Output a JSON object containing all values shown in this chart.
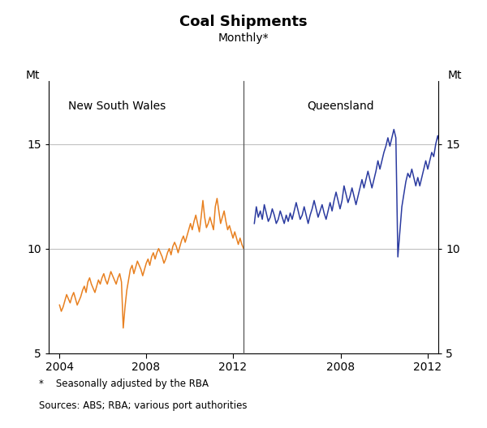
{
  "title": "Coal Shipments",
  "subtitle": "Monthly*",
  "ylabel_left": "Mt",
  "ylabel_right": "Mt",
  "ylim": [
    5,
    18
  ],
  "yticks": [
    5,
    10,
    15
  ],
  "ytick_labels": [
    "5",
    "10",
    "15"
  ],
  "footnote1": "*    Seasonally adjusted by the RBA",
  "footnote2": "Sources: ABS; RBA; various port authorities",
  "nsw_label": "New South Wales",
  "qld_label": "Queensland",
  "nsw_color": "#E88020",
  "qld_color": "#2B3BA0",
  "line_width": 1.1,
  "xticks_nsw": [
    2004,
    2008,
    2012
  ],
  "xticks_qld": [
    2008,
    2012
  ],
  "xlim_nsw": [
    2003.5,
    2012.5
  ],
  "xlim_qld": [
    2003.5,
    2012.5
  ],
  "nsw_data": [
    7.3,
    7.0,
    7.2,
    7.5,
    7.8,
    7.6,
    7.4,
    7.7,
    7.9,
    7.6,
    7.3,
    7.5,
    7.7,
    8.0,
    8.2,
    7.9,
    8.4,
    8.6,
    8.3,
    8.1,
    7.9,
    8.2,
    8.5,
    8.3,
    8.6,
    8.8,
    8.5,
    8.3,
    8.6,
    8.9,
    8.7,
    8.5,
    8.3,
    8.6,
    8.8,
    8.4,
    6.2,
    7.2,
    8.0,
    8.5,
    9.0,
    9.2,
    8.8,
    9.1,
    9.4,
    9.2,
    9.0,
    8.7,
    9.0,
    9.3,
    9.5,
    9.2,
    9.6,
    9.8,
    9.5,
    9.8,
    10.0,
    9.8,
    9.6,
    9.3,
    9.5,
    9.8,
    10.0,
    9.7,
    10.1,
    10.3,
    10.1,
    9.8,
    10.1,
    10.4,
    10.6,
    10.3,
    10.6,
    10.9,
    11.2,
    10.9,
    11.3,
    11.6,
    11.2,
    10.8,
    11.5,
    12.3,
    11.5,
    11.0,
    11.2,
    11.5,
    11.2,
    10.9,
    12.0,
    12.4,
    11.8,
    11.2,
    11.5,
    11.8,
    11.3,
    10.9,
    11.1,
    10.8,
    10.5,
    10.8,
    10.5,
    10.2,
    10.5,
    10.2,
    10.0,
    10.3,
    10.0,
    9.8
  ],
  "qld_data": [
    11.2,
    12.0,
    11.5,
    11.8,
    11.4,
    12.1,
    11.7,
    11.3,
    11.5,
    11.9,
    11.6,
    11.2,
    11.4,
    11.8,
    11.5,
    11.2,
    11.6,
    11.3,
    11.7,
    11.4,
    11.8,
    12.2,
    11.8,
    11.4,
    11.6,
    12.0,
    11.6,
    11.2,
    11.6,
    11.9,
    12.3,
    11.9,
    11.5,
    11.8,
    12.1,
    11.7,
    11.4,
    11.8,
    12.2,
    11.8,
    12.3,
    12.7,
    12.3,
    11.9,
    12.3,
    13.0,
    12.6,
    12.2,
    12.5,
    12.9,
    12.5,
    12.1,
    12.5,
    12.9,
    13.3,
    12.9,
    13.3,
    13.7,
    13.3,
    12.9,
    13.3,
    13.7,
    14.2,
    13.8,
    14.2,
    14.6,
    14.9,
    15.3,
    14.9,
    15.3,
    15.7,
    15.3,
    9.6,
    10.8,
    12.0,
    12.6,
    13.2,
    13.6,
    13.4,
    13.8,
    13.4,
    13.0,
    13.4,
    13.0,
    13.4,
    13.8,
    14.2,
    13.8,
    14.2,
    14.6,
    14.4,
    15.0,
    15.4,
    15.0,
    14.6,
    14.2
  ]
}
